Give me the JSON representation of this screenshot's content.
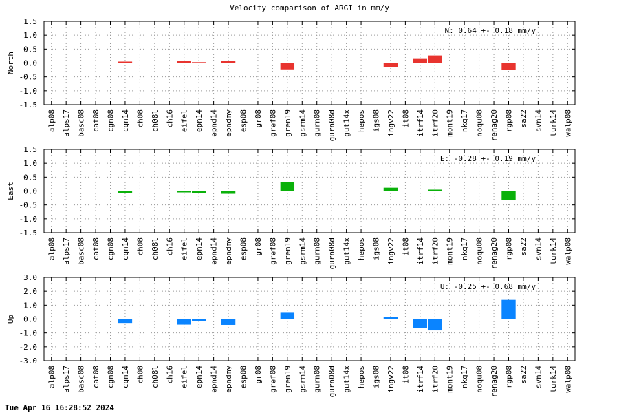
{
  "page": {
    "title": "Velocity comparison of ARGI in mm/y",
    "timestamp": "Tue Apr 16 16:28:52 2024"
  },
  "chart_data": [
    {
      "type": "bar",
      "ylabel": "North",
      "annotation": "N:   0.64 +-  0.18 mm/y",
      "ylim": [
        -1.5,
        1.5
      ],
      "yticks": [
        "1.5",
        "1.0",
        "0.5",
        "0.0",
        "-0.5",
        "-1.0",
        "-1.5"
      ],
      "grid": true,
      "color": "#e8342f",
      "categories": [
        "alp08",
        "alps17",
        "basc08",
        "cat08",
        "cgn08",
        "cgn14",
        "ch08",
        "ch08l",
        "ch16",
        "eifel",
        "epn14",
        "epnd14",
        "epndmy",
        "esp08",
        "gr08",
        "gref08",
        "gren19",
        "gsrm14",
        "gurn08",
        "gurn08d",
        "gut14x",
        "hepos",
        "igs08",
        "ingv22",
        "it08",
        "itrf14",
        "itrf20",
        "mont19",
        "nkg17",
        "noqu08",
        "renag20",
        "rgp08",
        "sa22",
        "svn14",
        "turk14",
        "walp08"
      ],
      "values": [
        null,
        null,
        null,
        null,
        null,
        0.05,
        null,
        null,
        null,
        0.07,
        0.03,
        null,
        0.07,
        null,
        null,
        null,
        -0.23,
        null,
        null,
        null,
        null,
        null,
        null,
        -0.15,
        null,
        0.17,
        0.27,
        null,
        null,
        null,
        null,
        -0.25,
        null,
        null,
        null,
        null
      ]
    },
    {
      "type": "bar",
      "ylabel": "East",
      "annotation": "E:  -0.28 +-  0.19 mm/y",
      "ylim": [
        -1.5,
        1.5
      ],
      "yticks": [
        "1.5",
        "1.0",
        "0.5",
        "0.0",
        "-0.5",
        "-1.0",
        "-1.5"
      ],
      "grid": true,
      "color": "#0ab10a",
      "categories": [
        "alp08",
        "alps17",
        "basc08",
        "cat08",
        "cgn08",
        "cgn14",
        "ch08",
        "ch08l",
        "ch16",
        "eifel",
        "epn14",
        "epnd14",
        "epndmy",
        "esp08",
        "gr08",
        "gref08",
        "gren19",
        "gsrm14",
        "gurn08",
        "gurn08d",
        "gut14x",
        "hepos",
        "igs08",
        "ingv22",
        "it08",
        "itrf14",
        "itrf20",
        "mont19",
        "nkg17",
        "noqu08",
        "renag20",
        "rgp08",
        "sa22",
        "svn14",
        "turk14",
        "walp08"
      ],
      "values": [
        null,
        null,
        null,
        null,
        null,
        -0.08,
        null,
        null,
        null,
        -0.05,
        -0.07,
        null,
        -0.1,
        null,
        null,
        null,
        0.32,
        null,
        null,
        null,
        null,
        null,
        null,
        0.12,
        null,
        null,
        0.05,
        null,
        null,
        null,
        null,
        -0.33,
        null,
        null,
        null,
        null
      ]
    },
    {
      "type": "bar",
      "ylabel": "Up",
      "annotation": "U:  -0.25 +-  0.68 mm/y",
      "ylim": [
        -3.0,
        3.0
      ],
      "yticks": [
        "3.0",
        "2.0",
        "1.0",
        "0.0",
        "-1.0",
        "-2.0",
        "-3.0"
      ],
      "grid": true,
      "color": "#0a84ff",
      "categories": [
        "alp08",
        "alps17",
        "basc08",
        "cat08",
        "cgn08",
        "cgn14",
        "ch08",
        "ch08l",
        "ch16",
        "eifel",
        "epn14",
        "epnd14",
        "epndmy",
        "esp08",
        "gr08",
        "gref08",
        "gren19",
        "gsrm14",
        "gurn08",
        "gurn08d",
        "gut14x",
        "hepos",
        "igs08",
        "ingv22",
        "it08",
        "itrf14",
        "itrf20",
        "mont19",
        "nkg17",
        "noqu08",
        "renag20",
        "rgp08",
        "sa22",
        "svn14",
        "turk14",
        "walp08"
      ],
      "values": [
        null,
        null,
        null,
        null,
        null,
        -0.28,
        null,
        null,
        null,
        -0.4,
        -0.16,
        null,
        -0.42,
        null,
        null,
        null,
        0.5,
        null,
        null,
        null,
        null,
        null,
        null,
        0.15,
        null,
        -0.62,
        -0.82,
        null,
        null,
        null,
        null,
        1.38,
        null,
        null,
        null,
        null
      ]
    }
  ]
}
